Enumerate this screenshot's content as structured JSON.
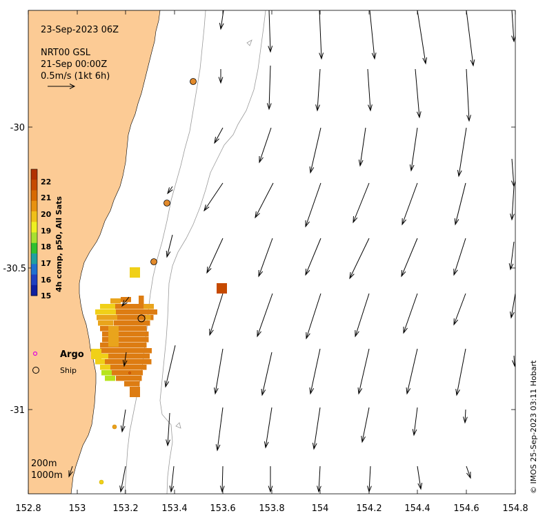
{
  "map": {
    "date_label": "23-Sep-2023 06Z",
    "product_line1": "NRT00 GSL",
    "product_line2": "21-Sep 00:00Z",
    "scale_label": "0.5m/s (1kt 6h)",
    "x_ticks": [
      "152.8",
      "153",
      "153.2",
      "153.4",
      "153.6",
      "153.8",
      "154",
      "154.2",
      "154.4",
      "154.6",
      "154.8"
    ],
    "y_ticks": [
      "-30",
      "-30.5",
      "-31"
    ],
    "legend": {
      "argo_label": "Argo",
      "ship_label": "Ship"
    },
    "contours": {
      "c200": "200m",
      "c1000": "1000m"
    },
    "credit": "© IMOS 25-Sep-2023 03:11 Hobart",
    "colorbar": {
      "title": "4h comp, p50, All Sats",
      "ticks": [
        "22",
        "21",
        "20",
        "19",
        "18",
        "17",
        "16",
        "15"
      ]
    },
    "colors": {
      "land": "#fccb95",
      "sst_hot": "#c64a00",
      "sst_warm": "#dd7c12",
      "sst_mid": "#e9a41c",
      "sst_cool": "#f0d018",
      "sst_green": "#b7e41c"
    },
    "icons": [
      "vector-arrow-icon",
      "argo-float-icon",
      "ship-icon"
    ]
  }
}
